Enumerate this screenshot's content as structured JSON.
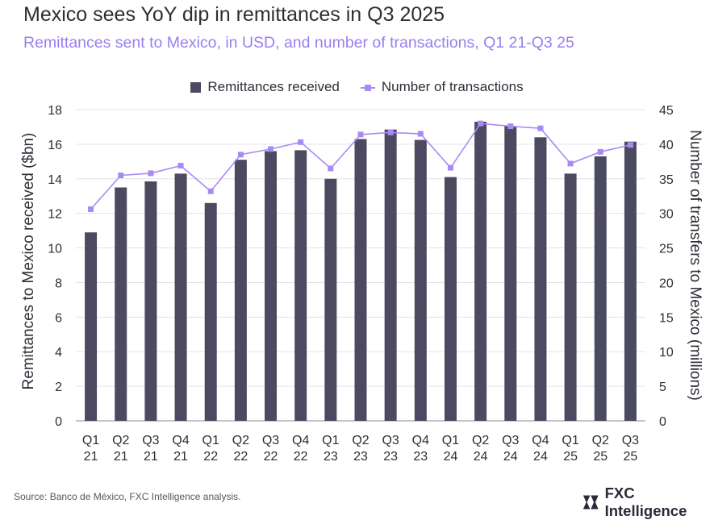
{
  "chart_data": {
    "type": "bar",
    "title": "Mexico sees YoY dip in remittances in Q3 2025",
    "subtitle": "Remittances sent to Mexico, in USD, and number of transactions, Q1 21-Q3 25",
    "categories": [
      [
        "Q1",
        "21"
      ],
      [
        "Q2",
        "21"
      ],
      [
        "Q3",
        "21"
      ],
      [
        "Q4",
        "21"
      ],
      [
        "Q1",
        "22"
      ],
      [
        "Q2",
        "22"
      ],
      [
        "Q3",
        "22"
      ],
      [
        "Q4",
        "22"
      ],
      [
        "Q1",
        "23"
      ],
      [
        "Q2",
        "23"
      ],
      [
        "Q3",
        "23"
      ],
      [
        "Q4",
        "23"
      ],
      [
        "Q1",
        "24"
      ],
      [
        "Q2",
        "24"
      ],
      [
        "Q3",
        "24"
      ],
      [
        "Q4",
        "24"
      ],
      [
        "Q1",
        "25"
      ],
      [
        "Q2",
        "25"
      ],
      [
        "Q3",
        "25"
      ]
    ],
    "series": [
      {
        "name": "Remittances received",
        "type": "bar",
        "axis": "left",
        "color": "#4b4a60",
        "values": [
          10.9,
          13.5,
          13.85,
          14.3,
          12.6,
          15.1,
          15.6,
          15.65,
          14.0,
          16.3,
          16.85,
          16.25,
          14.1,
          17.3,
          17.05,
          16.4,
          14.3,
          15.3,
          16.15
        ]
      },
      {
        "name": "Number of transactions",
        "type": "line",
        "axis": "right",
        "color": "#a98af3",
        "values": [
          30.6,
          35.5,
          35.8,
          36.9,
          33.2,
          38.5,
          39.3,
          40.3,
          36.5,
          41.4,
          41.7,
          41.5,
          36.6,
          43.0,
          42.6,
          42.3,
          37.2,
          38.9,
          39.9
        ]
      }
    ],
    "ylabel_left": "Remittances to Mexico received ($bn)",
    "ylabel_right": "Number of transfers to Mexico (millions)",
    "ylim_left": [
      0,
      18
    ],
    "yticks_left": [
      0,
      2,
      4,
      6,
      8,
      10,
      12,
      14,
      16,
      18
    ],
    "ylim_right": [
      0,
      45
    ],
    "yticks_right": [
      0,
      5,
      10,
      15,
      20,
      25,
      30,
      35,
      40,
      45
    ],
    "grid": true,
    "legend_position": "top-center",
    "source": "Source: Banco de México, FXC Intelligence analysis.",
    "brand": "FXC Intelligence"
  }
}
